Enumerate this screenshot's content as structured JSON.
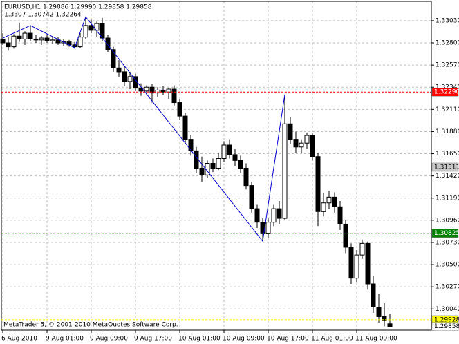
{
  "chart_data": {
    "type": "candlestick",
    "symbol_line": "EURUSD,H1  1.29886 1.29990 1.29858 1.29858",
    "indicator_line": "1.3307 1.30742 1.32264",
    "footer": "MetaTrader 5, © 2001-2010 MetaQuotes Software Corp.",
    "categories": [
      "6 Aug 2010",
      null,
      null,
      null,
      null,
      null,
      null,
      null,
      "9 Aug 01:00",
      null,
      null,
      null,
      null,
      null,
      null,
      null,
      "9 Aug 09:00",
      null,
      null,
      null,
      null,
      null,
      null,
      null,
      "9 Aug 17:00",
      null,
      null,
      null,
      null,
      null,
      null,
      null,
      "10 Aug 01:00",
      null,
      null,
      null,
      null,
      null,
      null,
      null,
      "10 Aug 09:00",
      null,
      null,
      null,
      null,
      null,
      null,
      null,
      "10 Aug 17:00",
      null,
      null,
      null,
      null,
      null,
      null,
      null,
      "11 Aug 01:00",
      null,
      null,
      null,
      null,
      null,
      null,
      null,
      "11 Aug 09:00",
      null,
      null,
      null,
      null,
      null,
      null
    ],
    "open": [
      1.3284,
      1.328,
      1.3276,
      1.3287,
      1.3284,
      1.329,
      1.3284,
      1.3283,
      1.3285,
      1.3282,
      1.3283,
      1.328,
      1.3281,
      1.3278,
      1.3276,
      1.3286,
      1.3298,
      1.3293,
      1.33,
      1.3285,
      1.3273,
      1.3254,
      1.325,
      1.324,
      1.3245,
      1.3233,
      1.323,
      1.3234,
      1.3228,
      1.3231,
      1.3229,
      1.3232,
      1.3218,
      1.3204,
      1.318,
      1.3168,
      1.315,
      1.3143,
      1.3155,
      1.315,
      1.316,
      1.3174,
      1.3164,
      1.3158,
      1.315,
      1.3132,
      1.3108,
      1.3094,
      1.3082,
      1.3094,
      1.3108,
      1.3098,
      1.3196,
      1.318,
      1.3172,
      1.3176,
      1.3184,
      1.3162,
      1.3105,
      1.3114,
      1.312,
      1.311,
      1.3092,
      1.3068,
      1.3036,
      1.306,
      1.3072,
      1.303,
      1.3006,
      1.2996,
      1.29886
    ],
    "high": [
      1.329,
      1.3286,
      1.3289,
      1.3301,
      1.3292,
      1.3298,
      1.3288,
      1.3287,
      1.3289,
      1.3286,
      1.3286,
      1.3284,
      1.3283,
      1.3281,
      1.329,
      1.3307,
      1.3304,
      1.3302,
      1.3306,
      1.3288,
      1.3276,
      1.3262,
      1.3256,
      1.325,
      1.3248,
      1.3238,
      1.3236,
      1.3237,
      1.3234,
      1.3235,
      1.3233,
      1.3236,
      1.3222,
      1.3207,
      1.3184,
      1.3172,
      1.3162,
      1.3158,
      1.316,
      1.3166,
      1.3178,
      1.318,
      1.317,
      1.3163,
      1.3155,
      1.3136,
      1.3112,
      1.3098,
      1.3098,
      1.3112,
      1.3116,
      1.32264,
      1.3203,
      1.3188,
      1.318,
      1.3187,
      1.3186,
      1.3166,
      1.3124,
      1.3126,
      1.3125,
      1.3116,
      1.3096,
      1.3072,
      1.3065,
      1.3076,
      1.3074,
      1.3038,
      1.302,
      1.301,
      1.2999
    ],
    "low": [
      1.3278,
      1.3272,
      1.3274,
      1.3281,
      1.3278,
      1.3282,
      1.328,
      1.3278,
      1.328,
      1.3279,
      1.3278,
      1.3277,
      1.3276,
      1.3274,
      1.3275,
      1.3284,
      1.329,
      1.3286,
      1.3282,
      1.327,
      1.325,
      1.3245,
      1.3235,
      1.3232,
      1.323,
      1.3225,
      1.3226,
      1.3218,
      1.3224,
      1.3226,
      1.3222,
      1.3215,
      1.32,
      1.3175,
      1.3163,
      1.3145,
      1.3136,
      1.314,
      1.3146,
      1.3148,
      1.3156,
      1.316,
      1.3152,
      1.3145,
      1.3128,
      1.3104,
      1.3088,
      1.30742,
      1.3078,
      1.309,
      1.3092,
      1.3096,
      1.3175,
      1.3166,
      1.3166,
      1.317,
      1.3158,
      1.309,
      1.31,
      1.3108,
      1.3104,
      1.3086,
      1.3062,
      1.303,
      1.3032,
      1.3056,
      1.3024,
      1.3,
      1.299,
      1.2986,
      1.29858
    ],
    "close": [
      1.328,
      1.3276,
      1.3287,
      1.3284,
      1.329,
      1.3284,
      1.3283,
      1.3285,
      1.3282,
      1.3283,
      1.328,
      1.3281,
      1.3278,
      1.3276,
      1.3286,
      1.3298,
      1.3293,
      1.33,
      1.3285,
      1.3273,
      1.3254,
      1.325,
      1.324,
      1.3245,
      1.3233,
      1.323,
      1.3234,
      1.3228,
      1.3231,
      1.3229,
      1.3232,
      1.3218,
      1.3204,
      1.318,
      1.3168,
      1.315,
      1.3143,
      1.3155,
      1.315,
      1.316,
      1.3174,
      1.3164,
      1.3158,
      1.315,
      1.3132,
      1.3108,
      1.3094,
      1.3082,
      1.3094,
      1.3108,
      1.3098,
      1.3196,
      1.318,
      1.3172,
      1.3176,
      1.3184,
      1.3162,
      1.3105,
      1.3114,
      1.312,
      1.311,
      1.3092,
      1.3068,
      1.3036,
      1.306,
      1.3072,
      1.303,
      1.3006,
      1.2996,
      1.2992,
      1.29858
    ],
    "up_color": "#ffffff",
    "down_color": "#000000",
    "zigzag": {
      "color": "#0000cc",
      "x": [
        0,
        5,
        13,
        15,
        47,
        51
      ],
      "values": [
        1.3285,
        1.3298,
        1.3275,
        1.3307,
        1.30742,
        1.32264
      ]
    },
    "levels": [
      {
        "value": 1.3229,
        "label": "1.32290",
        "color": "#ff0000",
        "line": true
      },
      {
        "value": 1.31511,
        "label": "1.31511",
        "color": "#c8c8c8",
        "line": false
      },
      {
        "value": 1.30825,
        "label": "1.30825",
        "color": "#008000",
        "line": true
      },
      {
        "value": 1.29928,
        "label": "1.29928",
        "color": "#ffff00",
        "line": true
      },
      {
        "value": 1.29858,
        "label": "1.29858",
        "color": "#ffffff",
        "line": false
      }
    ],
    "ylim": [
      1.2982,
      1.3323
    ],
    "yticks": [
      {
        "value": 1.3004,
        "label": "1.30040"
      },
      {
        "value": 1.3027,
        "label": "1.30270"
      },
      {
        "value": 1.305,
        "label": "1.30500"
      },
      {
        "value": 1.3073,
        "label": "1.30730"
      },
      {
        "value": 1.3096,
        "label": "1.30960"
      },
      {
        "value": 1.3119,
        "label": "1.31190"
      },
      {
        "value": 1.3142,
        "label": "1.31420"
      },
      {
        "value": 1.3165,
        "label": "1.31650"
      },
      {
        "value": 1.3188,
        "label": "1.31880"
      },
      {
        "value": 1.3211,
        "label": "1.32110"
      },
      {
        "value": 1.3234,
        "label": "1.32340"
      },
      {
        "value": 1.3257,
        "label": "1.32570"
      },
      {
        "value": 1.328,
        "label": "1.32800"
      },
      {
        "value": 1.3303,
        "label": "1.33030"
      }
    ],
    "grid": true
  }
}
